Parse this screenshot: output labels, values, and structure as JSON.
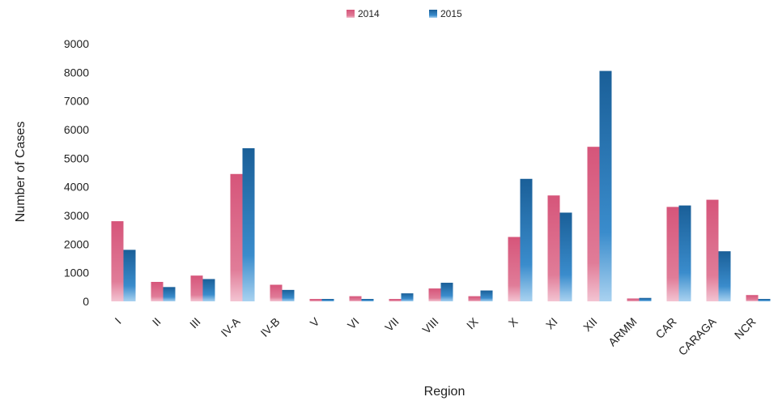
{
  "chart_data": {
    "type": "bar",
    "title": "",
    "xlabel": "Region",
    "ylabel": "Number of Cases",
    "categories": [
      "I",
      "II",
      "III",
      "IV-A",
      "IV-B",
      "V",
      "VI",
      "VII",
      "VIII",
      "IX",
      "X",
      "XI",
      "XII",
      "ARMM",
      "CAR",
      "CARAGA",
      "NCR"
    ],
    "series": [
      {
        "name": "2014",
        "color": "#d9577a",
        "values": [
          2800,
          680,
          900,
          4450,
          580,
          0,
          180,
          80,
          450,
          180,
          2250,
          3700,
          5400,
          100,
          3300,
          3550,
          220
        ]
      },
      {
        "name": "2015",
        "color": "#1f6fae",
        "values": [
          1800,
          500,
          780,
          5350,
          400,
          0,
          0,
          280,
          650,
          380,
          4280,
          3100,
          8050,
          120,
          3350,
          1750,
          40
        ]
      }
    ],
    "ylim": [
      0,
      9000
    ],
    "yticks": [
      0,
      1000,
      2000,
      3000,
      4000,
      5000,
      6000,
      7000,
      8000,
      9000
    ],
    "grid": false,
    "legend_position": "top-center"
  }
}
